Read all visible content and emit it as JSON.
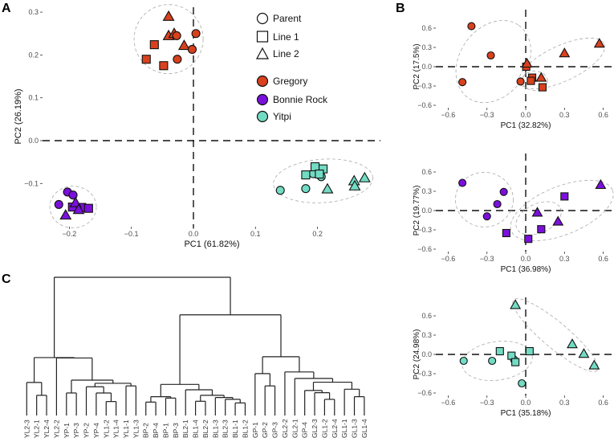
{
  "panels": {
    "a": "A",
    "b": "B",
    "c": "C"
  },
  "colors": {
    "Gregory": "#D9411E",
    "Bonnie Rock": "#7B10DC",
    "Yitpi": "#72DBC3"
  },
  "legend": {
    "shapes": [
      {
        "label": "Parent",
        "shape": "circle"
      },
      {
        "label": "Line 1",
        "shape": "square"
      },
      {
        "label": "Line 2",
        "shape": "triangle"
      }
    ],
    "groups": [
      {
        "label": "Gregory"
      },
      {
        "label": "Bonnie Rock"
      },
      {
        "label": "Yitpi"
      }
    ]
  },
  "chart_data": [
    {
      "type": "scatter",
      "id": "A",
      "xlabel": "PC1 (61.82%)",
      "ylabel": "PC2 (26.19%)",
      "xticks": [
        -0.2,
        -0.1,
        0.0,
        0.1,
        0.2
      ],
      "yticks": [
        -0.1,
        0.0,
        0.1,
        0.2,
        0.3
      ],
      "series": [
        {
          "group": "Gregory",
          "shape": "triangle",
          "points": [
            [
              -0.04,
              0.29
            ],
            [
              -0.04,
              0.245
            ],
            [
              -0.031,
              0.25
            ],
            [
              -0.015,
              0.222
            ]
          ]
        },
        {
          "group": "Gregory",
          "shape": "circle",
          "points": [
            [
              -0.027,
              0.245
            ],
            [
              0.004,
              0.25
            ],
            [
              -0.002,
              0.213
            ],
            [
              -0.026,
              0.19
            ]
          ]
        },
        {
          "group": "Gregory",
          "shape": "square",
          "points": [
            [
              -0.063,
              0.224
            ],
            [
              -0.076,
              0.19
            ],
            [
              -0.048,
              0.175
            ]
          ]
        },
        {
          "group": "Bonnie Rock",
          "shape": "circle",
          "points": [
            [
              -0.203,
              -0.12
            ],
            [
              -0.194,
              -0.127
            ],
            [
              -0.217,
              -0.149
            ]
          ]
        },
        {
          "group": "Bonnie Rock",
          "shape": "square",
          "points": [
            [
              -0.195,
              -0.155
            ],
            [
              -0.18,
              -0.156
            ],
            [
              -0.169,
              -0.158
            ]
          ]
        },
        {
          "group": "Bonnie Rock",
          "shape": "triangle",
          "points": [
            [
              -0.19,
              -0.145
            ],
            [
              -0.206,
              -0.174
            ],
            [
              -0.185,
              -0.161
            ]
          ]
        },
        {
          "group": "Yitpi",
          "shape": "circle",
          "points": [
            [
              0.14,
              -0.116
            ],
            [
              0.181,
              -0.112
            ],
            [
              0.193,
              -0.077
            ],
            [
              0.206,
              -0.084
            ]
          ]
        },
        {
          "group": "Yitpi",
          "shape": "square",
          "points": [
            [
              0.181,
              -0.08
            ],
            [
              0.196,
              -0.061
            ],
            [
              0.209,
              -0.066
            ],
            [
              0.203,
              -0.078
            ]
          ]
        },
        {
          "group": "Yitpi",
          "shape": "triangle",
          "points": [
            [
              0.216,
              -0.113
            ],
            [
              0.259,
              -0.094
            ],
            [
              0.26,
              -0.106
            ],
            [
              0.276,
              -0.087
            ]
          ]
        }
      ]
    },
    {
      "type": "scatter",
      "id": "B-Gregory",
      "xlabel": "PC1 (32.82%)",
      "ylabel": "PC2 (17.5%)",
      "xticks": [
        -0.6,
        -0.3,
        0.0,
        0.3,
        0.6
      ],
      "yticks": [
        -0.6,
        -0.3,
        0.0,
        0.3,
        0.6
      ],
      "series": [
        {
          "group": "Gregory",
          "shape": "circle",
          "points": [
            [
              -0.42,
              0.63
            ],
            [
              -0.27,
              0.175
            ],
            [
              -0.49,
              -0.24
            ],
            [
              -0.04,
              -0.23
            ]
          ]
        },
        {
          "group": "Gregory",
          "shape": "square",
          "points": [
            [
              0.004,
              0.0
            ],
            [
              0.05,
              -0.17
            ],
            [
              0.04,
              -0.22
            ],
            [
              0.13,
              -0.32
            ]
          ]
        },
        {
          "group": "Gregory",
          "shape": "triangle",
          "points": [
            [
              0.01,
              0.05
            ],
            [
              0.12,
              -0.17
            ],
            [
              0.3,
              0.21
            ],
            [
              0.57,
              0.36
            ]
          ]
        }
      ]
    },
    {
      "type": "scatter",
      "id": "B-BonnieRock",
      "xlabel": "PC1 (36.98%)",
      "ylabel": "PC2 (19.77%)",
      "xticks": [
        -0.6,
        -0.3,
        0.0,
        0.3,
        0.6
      ],
      "yticks": [
        -0.6,
        -0.3,
        0.0,
        0.3,
        0.6
      ],
      "series": [
        {
          "group": "Bonnie Rock",
          "shape": "circle",
          "points": [
            [
              -0.49,
              0.43
            ],
            [
              -0.17,
              0.29
            ],
            [
              -0.22,
              0.1
            ],
            [
              -0.3,
              -0.09
            ]
          ]
        },
        {
          "group": "Bonnie Rock",
          "shape": "square",
          "points": [
            [
              -0.15,
              -0.35
            ],
            [
              0.02,
              -0.44
            ],
            [
              0.12,
              -0.29
            ],
            [
              0.3,
              0.22
            ]
          ]
        },
        {
          "group": "Bonnie Rock",
          "shape": "triangle",
          "points": [
            [
              0.09,
              -0.03
            ],
            [
              0.25,
              -0.17
            ],
            [
              0.58,
              0.4
            ]
          ]
        }
      ]
    },
    {
      "type": "scatter",
      "id": "B-Yitpi",
      "xlabel": "PC1 (35.18%)",
      "ylabel": "PC2 (24.98%)",
      "xticks": [
        -0.6,
        -0.3,
        0.0,
        0.3,
        0.6
      ],
      "yticks": [
        -0.6,
        -0.3,
        0.0,
        0.3,
        0.6
      ],
      "series": [
        {
          "group": "Yitpi",
          "shape": "circle",
          "points": [
            [
              -0.48,
              -0.1
            ],
            [
              -0.26,
              -0.1
            ],
            [
              -0.03,
              -0.45
            ],
            [
              -0.09,
              -0.08
            ]
          ]
        },
        {
          "group": "Yitpi",
          "shape": "square",
          "points": [
            [
              -0.2,
              0.05
            ],
            [
              -0.11,
              -0.02
            ],
            [
              -0.08,
              -0.12
            ],
            [
              0.03,
              0.05
            ]
          ]
        },
        {
          "group": "Yitpi",
          "shape": "triangle",
          "points": [
            [
              -0.08,
              0.77
            ],
            [
              0.36,
              0.16
            ],
            [
              0.45,
              0.01
            ],
            [
              0.53,
              -0.17
            ]
          ]
        }
      ]
    },
    {
      "type": "dendrogram",
      "id": "C",
      "leaves": [
        "YL2-3",
        "YL2-1",
        "YL2-4",
        "YL2-2",
        "YP-1",
        "YP-3",
        "YP-2",
        "YP-4",
        "YL1-2",
        "YL1-4",
        "YL1-1",
        "YL1-3",
        "BP-2",
        "BP-4",
        "BP-1",
        "BP-3",
        "BL2-1",
        "BL1-4",
        "BL2-2",
        "BL1-3",
        "BL2-3",
        "BL1-1",
        "BL1-2",
        "GP-1",
        "GP-2",
        "GP-3",
        "GL2-2",
        "GL2-1",
        "GP-4",
        "GL2-3",
        "GL1-2",
        "GL2-4",
        "GL1-1",
        "GL1-3",
        "GL1-4"
      ],
      "tree": {
        "h": 100,
        "c": [
          {
            "h": 41.9,
            "c": [
              {
                "h": 23.9,
                "c": [
                  "YL2-3",
                  {
                    "h": 14.6,
                    "c": [
                      "YL2-1",
                      "YL2-4"
                    ]
                  }
                ]
              },
              {
                "h": 41.6,
                "c": [
                  "YL2-2",
                  {
                    "h": 25.6,
                    "c": [
                      {
                        "h": 16.3,
                        "c": [
                          "YP-1",
                          "YP-3"
                        ]
                      },
                      {
                        "h": 23.3,
                        "c": [
                          {
                            "h": 20.8,
                            "c": [
                              "YP-2",
                              {
                                "h": 16.3,
                                "c": [
                                  "YP-4",
                                  {
                                    "h": 10.1,
                                    "c": [
                                      "YL1-2",
                                      "YL1-4"
                                    ]
                                  }
                                ]
                              }
                            ]
                          },
                          {
                            "h": 21.4,
                            "c": [
                              "YL1-1",
                              "YL1-3"
                            ]
                          }
                        ]
                      }
                    ]
                  }
                ]
              }
            ]
          },
          {
            "h": 72.8,
            "c": [
              {
                "h": 22.5,
                "c": [
                  {
                    "h": 13.6,
                    "c": [
                      {
                        "h": 9.7,
                        "c": [
                          "BP-2",
                          "BP-4"
                        ]
                      },
                      {
                        "h": 12.6,
                        "c": [
                          "BP-1",
                          "BP-3"
                        ]
                      }
                    ]
                  },
                  {
                    "h": 18.6,
                    "c": [
                      "BL2-1",
                      {
                        "h": 14.6,
                        "c": [
                          {
                            "h": 10.3,
                            "c": [
                              "BL1-4",
                              "BL2-2"
                            ]
                          },
                          {
                            "h": 13.0,
                            "c": [
                              "BL1-3",
                              {
                                "h": 11.7,
                                "c": [
                                  "BL2-3",
                                  {
                                    "h": 9.1,
                                    "c": [
                                      "BL1-1",
                                      "BL1-2"
                                    ]
                                  }
                                ]
                              }
                            ]
                          }
                        ]
                      }
                    ]
                  }
                ]
              },
              {
                "h": 42.5,
                "c": [
                  {
                    "h": 30.3,
                    "c": [
                      "GP-1",
                      {
                        "h": 21.4,
                        "c": [
                          "GP-2",
                          "GP-3"
                        ]
                      }
                    ]
                  },
                  {
                    "h": 31.5,
                    "c": [
                      "GL2-2",
                      {
                        "h": 26.8,
                        "c": [
                          "GL2-1",
                          {
                            "h": 24.1,
                            "c": [
                              {
                                "h": 18.1,
                                "c": [
                                  "GP-4",
                                  {
                                    "h": 16.5,
                                    "c": [
                                      "GL2-3",
                                      {
                                        "h": 11.7,
                                        "c": [
                                          "GL1-2",
                                          "GL2-4"
                                        ]
                                      }
                                    ]
                                  }
                                ]
                              },
                              {
                                "h": 19.0,
                                "c": [
                                  "GL1-1",
                                  {
                                    "h": 13.6,
                                    "c": [
                                      "GL1-3",
                                      "GL1-4"
                                    ]
                                  }
                                ]
                              }
                            ]
                          }
                        ]
                      }
                    ]
                  }
                ]
              }
            ]
          }
        ]
      }
    }
  ]
}
